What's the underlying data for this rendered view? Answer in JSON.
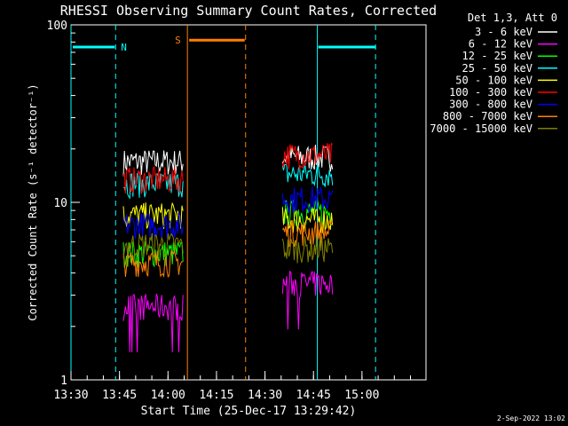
{
  "chart_data": {
    "type": "line",
    "title": "RHESSI Observing Summary Count Rates, Corrected",
    "xlabel": "Start Time (25-Dec-17 13:29:42)",
    "ylabel": "Corrected Count Rate (s⁻¹ detector⁻¹)",
    "y_scale": "log",
    "ylim": [
      1,
      100
    ],
    "xlim_minutes": [
      13.5,
      15.33
    ],
    "x_ticks": [
      {
        "label": "13:30",
        "t": 13.5
      },
      {
        "label": "13:45",
        "t": 13.75
      },
      {
        "label": "14:00",
        "t": 14.0
      },
      {
        "label": "14:15",
        "t": 14.25
      },
      {
        "label": "14:30",
        "t": 14.5
      },
      {
        "label": "14:45",
        "t": 14.75
      },
      {
        "label": "15:00",
        "t": 15.0
      }
    ],
    "y_ticks": [
      {
        "label": "1",
        "v": 1
      },
      {
        "label": "10",
        "v": 10
      },
      {
        "label": "100",
        "v": 100
      }
    ],
    "legend_title": "Det 1,3, Att 0",
    "legend_placement": "right",
    "series": [
      {
        "name": "3 - 6 keV",
        "color": "#ffffff",
        "seg1": 17.0,
        "seg2": 18.0
      },
      {
        "name": "6 - 12 keV",
        "color": "#ff00ff",
        "seg1": 2.6,
        "seg2": 3.5
      },
      {
        "name": "12 - 25 keV",
        "color": "#00ff00",
        "seg1": 5.2,
        "seg2": 8.8
      },
      {
        "name": "25 - 50 keV",
        "color": "#00ffff",
        "seg1": 12.8,
        "seg2": 14.5
      },
      {
        "name": "50 - 100 keV",
        "color": "#ffff00",
        "seg1": 8.5,
        "seg2": 8.0
      },
      {
        "name": "100 - 300 keV",
        "color": "#ff0000",
        "seg1": 13.5,
        "seg2": 18.5
      },
      {
        "name": "300 - 800 keV",
        "color": "#0000ff",
        "seg1": 7.5,
        "seg2": 10.5
      },
      {
        "name": "800 - 7000 keV",
        "color": "#ff8000",
        "seg1": 4.6,
        "seg2": 6.8
      },
      {
        "name": "7000 - 15000 keV",
        "color": "#808000",
        "seg1": 5.8,
        "seg2": 5.5
      }
    ],
    "data_segments": [
      {
        "start": 13.77,
        "end": 14.08
      },
      {
        "start": 14.59,
        "end": 14.85
      }
    ],
    "annotations": [
      {
        "label": "N",
        "color": "#00ffff",
        "start": 13.5,
        "end": 13.73,
        "bar_level": 75,
        "dashed_lines": [
          13.73,
          15.07
        ],
        "solid_lines": [
          13.5,
          14.77
        ],
        "bar2": [
          14.77,
          15.07
        ]
      },
      {
        "label": "S",
        "color": "#ff8000",
        "start": 14.1,
        "end": 14.4,
        "bar_level": 82,
        "dashed_lines": [
          14.4
        ],
        "solid_lines": [
          14.1
        ]
      }
    ]
  },
  "footer": {
    "timestamp": "2-Sep-2022 13:02"
  }
}
